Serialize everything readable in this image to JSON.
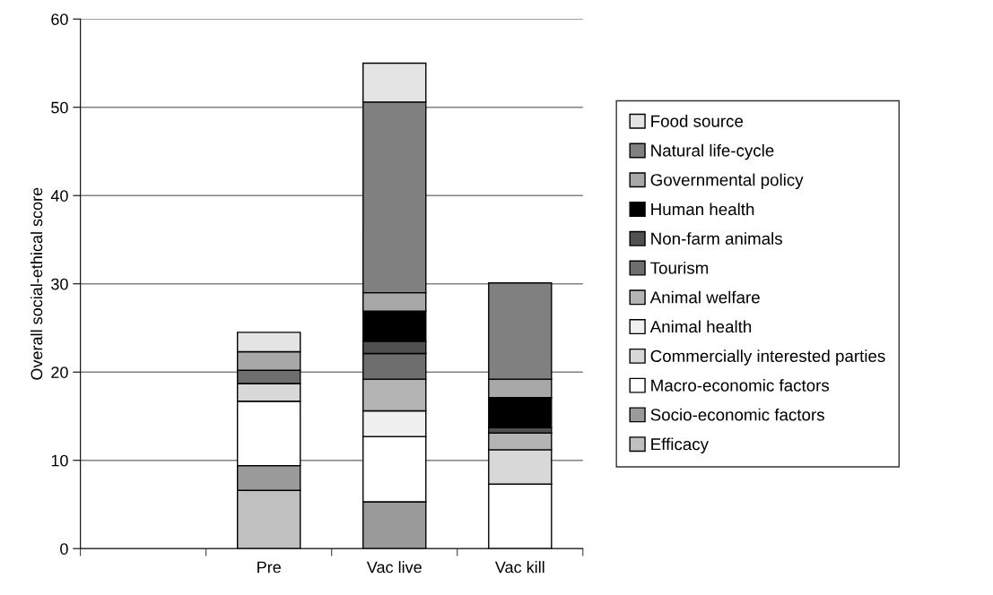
{
  "chart_data": {
    "type": "bar",
    "stacked": true,
    "ylabel": "Overall social-ethical score",
    "categories": [
      null,
      "Pre",
      "Vac live",
      "Vac kill"
    ],
    "series": [
      {
        "name": "Efficacy",
        "color": "#c0c0c0",
        "values": [
          0,
          6.6,
          0,
          0
        ]
      },
      {
        "name": "Socio-economic factors",
        "color": "#9a9a9a",
        "values": [
          0,
          2.8,
          5.3,
          0
        ]
      },
      {
        "name": "Macro-economic factors",
        "color": "#ffffff",
        "values": [
          0,
          7.3,
          7.4,
          7.3
        ]
      },
      {
        "name": "Commercially interested parties",
        "color": "#d8d8d8",
        "values": [
          0,
          2.0,
          0,
          3.9
        ]
      },
      {
        "name": "Animal health",
        "color": "#f0f0f0",
        "values": [
          0,
          0,
          2.9,
          0
        ]
      },
      {
        "name": "Animal welfare",
        "color": "#b4b4b4",
        "values": [
          0,
          0,
          3.6,
          1.9
        ]
      },
      {
        "name": "Tourism",
        "color": "#6e6e6e",
        "values": [
          0,
          1.5,
          2.9,
          0
        ]
      },
      {
        "name": "Non-farm animals",
        "color": "#505050",
        "values": [
          0,
          0,
          1.4,
          0.6
        ]
      },
      {
        "name": "Human health",
        "color": "#000000",
        "values": [
          0,
          0,
          3.4,
          3.4
        ]
      },
      {
        "name": "Governmental policy",
        "color": "#a8a8a8",
        "values": [
          0,
          2.1,
          2.1,
          2.1
        ]
      },
      {
        "name": "Natural life-cycle",
        "color": "#808080",
        "values": [
          0,
          0,
          21.6,
          10.9
        ]
      },
      {
        "name": "Food source",
        "color": "#e4e4e4",
        "values": [
          0,
          2.2,
          4.4,
          0
        ]
      }
    ],
    "ylim": [
      0,
      60
    ],
    "yticks": [
      0,
      10,
      20,
      30,
      40,
      50,
      60
    ],
    "grid": "y",
    "legend": "right"
  }
}
